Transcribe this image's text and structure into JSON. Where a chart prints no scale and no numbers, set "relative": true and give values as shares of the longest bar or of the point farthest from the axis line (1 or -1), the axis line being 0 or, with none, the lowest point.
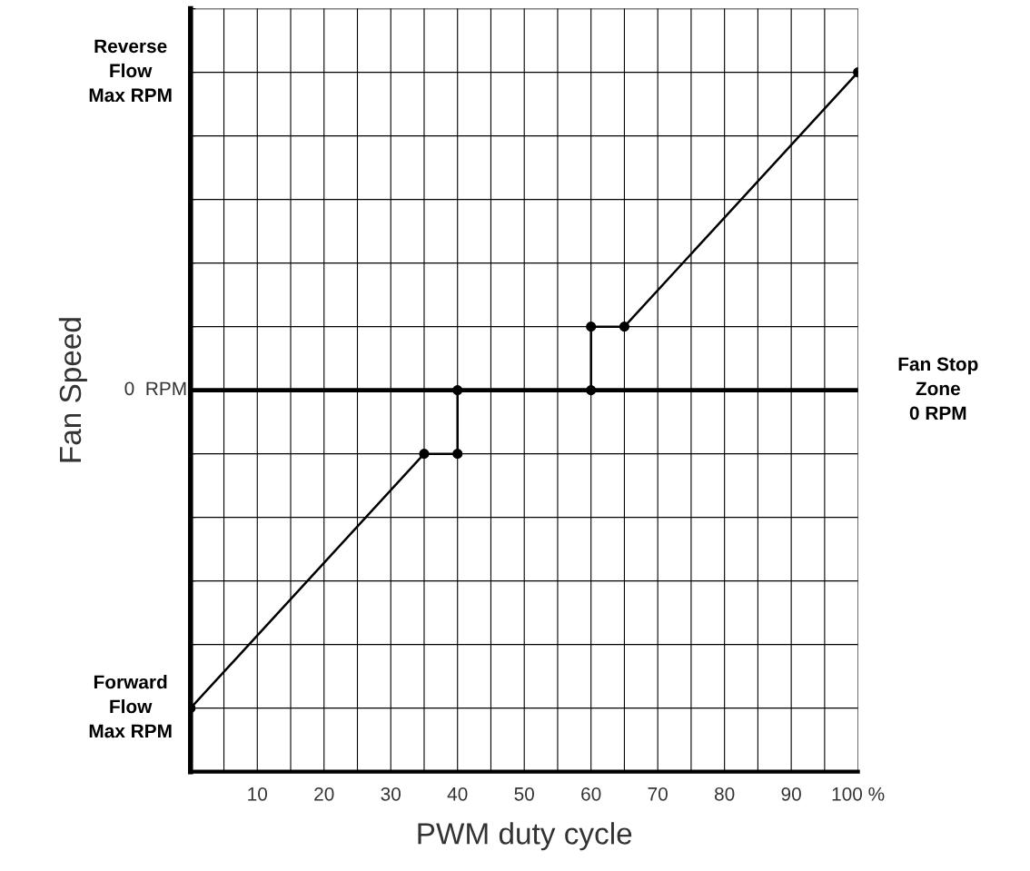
{
  "chart_data": {
    "type": "line",
    "relative": true,
    "xlabel": "PWM duty cycle",
    "ylabel": "Fan Speed",
    "x": [
      0,
      35,
      40,
      40,
      60,
      60,
      65,
      100
    ],
    "series": [
      {
        "color": "#000000",
        "values": [
          -1,
          -0.2,
          -0.2,
          0,
          0,
          0.2,
          0.2,
          1
        ]
      }
    ],
    "marker": "circle",
    "line_style": "solid",
    "grid": true,
    "xlim": [
      0,
      100
    ],
    "xticks": [
      {
        "value": 5,
        "label": null
      },
      10,
      {
        "value": 15,
        "label": null
      },
      20,
      {
        "value": 25,
        "label": null
      },
      30,
      {
        "value": 35,
        "label": null
      },
      40,
      {
        "value": 45,
        "label": null
      },
      50,
      {
        "value": 55,
        "label": null
      },
      60,
      {
        "value": 65,
        "label": null
      },
      70,
      {
        "value": 75,
        "label": null
      },
      80,
      {
        "value": 85,
        "label": null
      },
      90,
      {
        "value": 95,
        "label": null
      },
      {
        "value": 100,
        "label": "100 %"
      }
    ],
    "ref_lines": [
      {
        "axis": "y",
        "value": 0,
        "color": "#000000"
      }
    ],
    "annotations": [
      "Reverse\nFlow\nMax RPM",
      "0  RPM",
      "Forward\nFlow\nMax RPM",
      "Fan Stop\nZone\n0 RPM"
    ]
  }
}
